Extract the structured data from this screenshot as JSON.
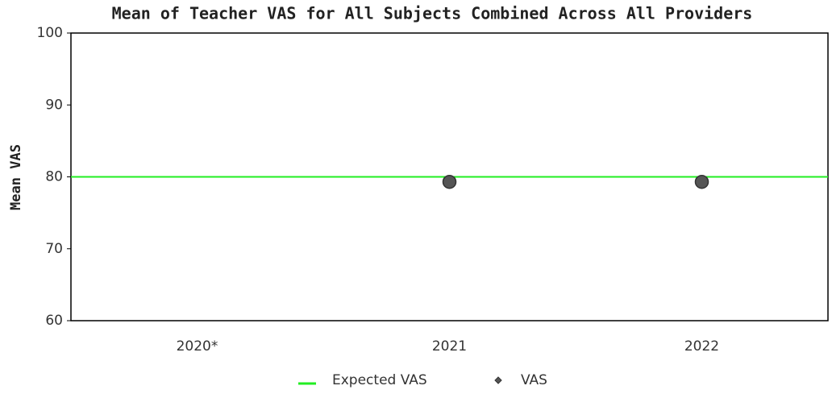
{
  "chart_data": {
    "type": "scatter",
    "title": "Mean of Teacher VAS for All Subjects Combined Across All Providers",
    "y_label": "Mean VAS",
    "categories": [
      "2020*",
      "2021",
      "2022"
    ],
    "series": [
      {
        "name": "VAS",
        "color": "#555555",
        "values": [
          null,
          79.3,
          79.3
        ]
      }
    ],
    "reference_line": {
      "name": "Expected VAS",
      "value": 80,
      "color": "#22ee22"
    },
    "ylim": [
      60,
      100
    ],
    "yticks": [
      60,
      70,
      80,
      90,
      100
    ],
    "legend": "bottom"
  }
}
